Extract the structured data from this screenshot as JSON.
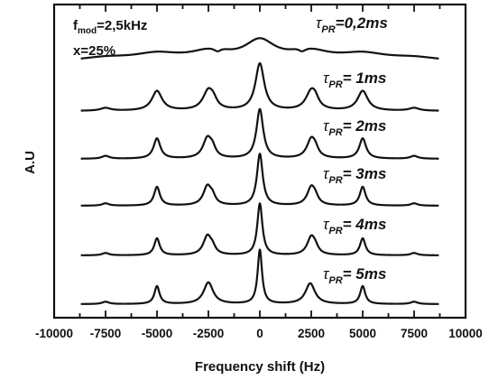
{
  "chart_data": {
    "type": "line",
    "xlabel": "Frequency shift (Hz)",
    "ylabel": "A.U",
    "xlim": [
      -10000,
      10000
    ],
    "xticks": [
      -10000,
      -7500,
      -5000,
      -2500,
      0,
      2500,
      5000,
      7500,
      10000
    ],
    "x_plotted_range": [
      -8700,
      8700
    ],
    "annotations": [
      "f_mod=2,5kHz",
      "x=25%"
    ],
    "annotation_parts": {
      "f_base": "f",
      "f_sub": "mod",
      "f_value": "=2,5kHz",
      "x_text": "x=25%"
    },
    "series": [
      {
        "name": "τ_PR=0,2ms",
        "label": {
          "symbol": "τ",
          "sub": "PR",
          "value": "=0,2ms"
        },
        "baseline": 0.05,
        "peaks": [
          {
            "x": 0,
            "height": 0.38,
            "width": 900
          },
          {
            "x": -2500,
            "height": 0.16,
            "width": 1100
          },
          {
            "x": 2500,
            "height": 0.16,
            "width": 1100
          },
          {
            "x": -1900,
            "height": 0.05,
            "width": 500
          },
          {
            "x": 1900,
            "height": 0.05,
            "width": 500
          },
          {
            "x": -5000,
            "height": 0.14,
            "width": 1400
          },
          {
            "x": 5000,
            "height": 0.14,
            "width": 1400
          },
          {
            "x": -7500,
            "height": 0.07,
            "width": 1500
          },
          {
            "x": 7500,
            "height": 0.07,
            "width": 1500
          }
        ],
        "dips": [
          {
            "x": -2050,
            "depth": 0.08,
            "width": 220
          },
          {
            "x": 2050,
            "depth": 0.08,
            "width": 220
          }
        ]
      },
      {
        "name": "τ_PR= 1ms",
        "label": {
          "symbol": "τ",
          "sub": "PR",
          "value": "= 1ms"
        },
        "baseline": 0,
        "peaks": [
          {
            "x": 0,
            "height": 1.0,
            "width": 260
          },
          {
            "x": -2500,
            "height": 0.42,
            "width": 320
          },
          {
            "x": -2250,
            "height": 0.12,
            "width": 200
          },
          {
            "x": 2500,
            "height": 0.4,
            "width": 320
          },
          {
            "x": 2700,
            "height": 0.12,
            "width": 200
          },
          {
            "x": -5000,
            "height": 0.42,
            "width": 300
          },
          {
            "x": 5000,
            "height": 0.42,
            "width": 300
          },
          {
            "x": -7500,
            "height": 0.06,
            "width": 300
          },
          {
            "x": 7500,
            "height": 0.06,
            "width": 300
          }
        ]
      },
      {
        "name": "τ_PR= 2ms",
        "label": {
          "symbol": "τ",
          "sub": "PR",
          "value": "= 2ms"
        },
        "baseline": 0,
        "peaks": [
          {
            "x": 0,
            "height": 1.05,
            "width": 200
          },
          {
            "x": -2550,
            "height": 0.42,
            "width": 260
          },
          {
            "x": -2300,
            "height": 0.16,
            "width": 180
          },
          {
            "x": 2500,
            "height": 0.4,
            "width": 260
          },
          {
            "x": 2700,
            "height": 0.12,
            "width": 180
          },
          {
            "x": -5000,
            "height": 0.43,
            "width": 200
          },
          {
            "x": 5000,
            "height": 0.43,
            "width": 200
          },
          {
            "x": -7500,
            "height": 0.06,
            "width": 220
          },
          {
            "x": 7500,
            "height": 0.06,
            "width": 220
          }
        ]
      },
      {
        "name": "τ_PR= 3ms",
        "label": {
          "symbol": "τ",
          "sub": "PR",
          "value": "= 3ms"
        },
        "baseline": 0,
        "peaks": [
          {
            "x": 0,
            "height": 1.1,
            "width": 170
          },
          {
            "x": -2550,
            "height": 0.4,
            "width": 240
          },
          {
            "x": -2300,
            "height": 0.14,
            "width": 170
          },
          {
            "x": 2500,
            "height": 0.38,
            "width": 240
          },
          {
            "x": 2700,
            "height": 0.11,
            "width": 170
          },
          {
            "x": -5000,
            "height": 0.4,
            "width": 170
          },
          {
            "x": 5000,
            "height": 0.4,
            "width": 170
          },
          {
            "x": -7500,
            "height": 0.05,
            "width": 200
          },
          {
            "x": 7500,
            "height": 0.05,
            "width": 200
          }
        ]
      },
      {
        "name": "τ_PR= 4ms",
        "label": {
          "symbol": "τ",
          "sub": "PR",
          "value": "= 4ms"
        },
        "baseline": 0,
        "peaks": [
          {
            "x": 0,
            "height": 1.1,
            "width": 150
          },
          {
            "x": -2550,
            "height": 0.4,
            "width": 240
          },
          {
            "x": -2300,
            "height": 0.12,
            "width": 170
          },
          {
            "x": 2500,
            "height": 0.38,
            "width": 240
          },
          {
            "x": 2700,
            "height": 0.1,
            "width": 170
          },
          {
            "x": -5000,
            "height": 0.36,
            "width": 160
          },
          {
            "x": 5000,
            "height": 0.36,
            "width": 160
          },
          {
            "x": -7500,
            "height": 0.05,
            "width": 200
          },
          {
            "x": 7500,
            "height": 0.05,
            "width": 200
          }
        ]
      },
      {
        "name": "τ_PR= 5ms",
        "label": {
          "symbol": "τ",
          "sub": "PR",
          "value": "= 5ms"
        },
        "baseline": 0,
        "peaks": [
          {
            "x": 0,
            "height": 1.15,
            "width": 130
          },
          {
            "x": -2500,
            "height": 0.46,
            "width": 280
          },
          {
            "x": 2450,
            "height": 0.44,
            "width": 280
          },
          {
            "x": -5000,
            "height": 0.38,
            "width": 150
          },
          {
            "x": 5000,
            "height": 0.38,
            "width": 150
          },
          {
            "x": -7500,
            "height": 0.05,
            "width": 200
          },
          {
            "x": 7500,
            "height": 0.05,
            "width": 200
          }
        ]
      }
    ]
  }
}
